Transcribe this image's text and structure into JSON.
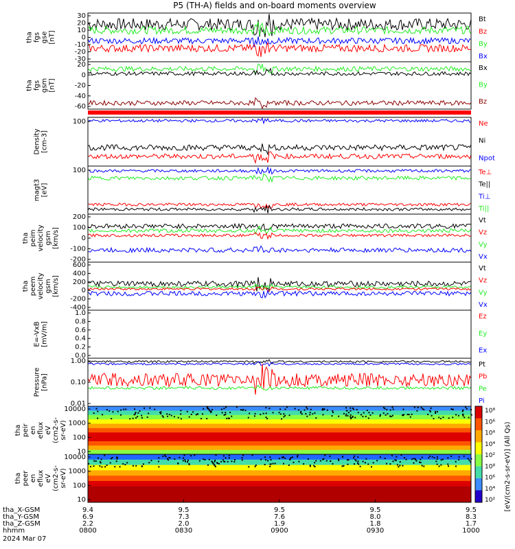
{
  "title": "P5 (TH-A) fields and on-board moments overview",
  "colors": {
    "black": "#000000",
    "red": "#ff0000",
    "green": "#22ee22",
    "blue": "#0000ff",
    "darkred": "#8b0000"
  },
  "panels": [
    {
      "id": "fgs",
      "ylabel": [
        "tha",
        "fgs",
        "gse",
        "[nT]"
      ],
      "ticks": [
        "30",
        "20",
        "10",
        "0",
        "-10",
        "-20",
        "-30"
      ],
      "ylim": [
        -30,
        35
      ],
      "legend": [
        {
          "label": "Bt",
          "color": "black"
        },
        {
          "label": "Bz",
          "color": "red"
        },
        {
          "label": "By",
          "color": "green"
        },
        {
          "label": "Bx",
          "color": "blue"
        }
      ],
      "series": [
        {
          "color": "black",
          "mean": 20,
          "amp": 8
        },
        {
          "color": "green",
          "mean": 12,
          "amp": 5
        },
        {
          "color": "blue",
          "mean": -2,
          "amp": 4
        },
        {
          "color": "red",
          "mean": -12,
          "amp": 5
        }
      ]
    },
    {
      "id": "fgs_gsm",
      "ylabel": [
        "tha",
        "fgs",
        "gsm",
        "[nT]"
      ],
      "ticks": [
        "20",
        "0",
        "-20",
        "-40",
        "-60"
      ],
      "ylim": [
        -75,
        25
      ],
      "legend": [
        {
          "label": "Bx",
          "color": "black"
        },
        {
          "label": "By",
          "color": "green"
        },
        {
          "label": "Bz",
          "color": "darkred"
        }
      ],
      "series": [
        {
          "color": "green",
          "mean": 10,
          "amp": 5
        },
        {
          "color": "black",
          "mean": 0,
          "amp": 4
        },
        {
          "color": "darkred",
          "mean": -62,
          "amp": 5
        }
      ]
    },
    {
      "id": "density",
      "ylabel": [
        "Density",
        "[cm-3]"
      ],
      "ticks": [
        "100"
      ],
      "ylim": [
        0,
        1
      ],
      "legend": [
        {
          "label": "Ne",
          "color": "red"
        },
        {
          "label": "Ni",
          "color": "black"
        },
        {
          "label": "Npot",
          "color": "blue"
        }
      ],
      "series": [
        {
          "color": "blue",
          "mean": 0.93,
          "amp": 0.03
        },
        {
          "color": "black",
          "mean": 0.38,
          "amp": 0.06
        },
        {
          "color": "red",
          "mean": 0.2,
          "amp": 0.05
        }
      ]
    },
    {
      "id": "temp",
      "ylabel": [
        "magt3",
        "[eV]"
      ],
      "ticks": [
        "100"
      ],
      "ylim": [
        0,
        1
      ],
      "legend": [
        {
          "label": "Te⊥",
          "color": "red"
        },
        {
          "label": "Te||",
          "color": "black"
        },
        {
          "label": "Ti⊥",
          "color": "blue"
        },
        {
          "label": "Ti||",
          "color": "green"
        }
      ],
      "series": [
        {
          "color": "blue",
          "mean": 0.9,
          "amp": 0.03
        },
        {
          "color": "green",
          "mean": 0.75,
          "amp": 0.04
        },
        {
          "color": "red",
          "mean": 0.2,
          "amp": 0.03
        },
        {
          "color": "black",
          "mean": 0.1,
          "amp": 0.03
        }
      ]
    },
    {
      "id": "peim",
      "ylabel": [
        "tha",
        "peim",
        "velocity",
        "gsm",
        "[km/s]"
      ],
      "ticks": [
        "200",
        "100",
        "0",
        "-100",
        "-200"
      ],
      "ylim": [
        -260,
        260
      ],
      "legend": [
        {
          "label": "Vt",
          "color": "black"
        },
        {
          "label": "Vz",
          "color": "red"
        },
        {
          "label": "Vy",
          "color": "green"
        },
        {
          "label": "Vx",
          "color": "blue"
        }
      ],
      "series": [
        {
          "color": "black",
          "mean": 130,
          "amp": 25
        },
        {
          "color": "green",
          "mean": 80,
          "amp": 20
        },
        {
          "color": "red",
          "mean": 30,
          "amp": 15
        },
        {
          "color": "blue",
          "mean": -130,
          "amp": 25
        }
      ]
    },
    {
      "id": "peem",
      "ylabel": [
        "tha",
        "peem",
        "velocity",
        "gsm",
        "[km/s]"
      ],
      "ticks": [
        "600",
        "400",
        "200",
        "0",
        "-200",
        "-400"
      ],
      "ylim": [
        -420,
        620
      ],
      "legend": [
        {
          "label": "Vt",
          "color": "black"
        },
        {
          "label": "Vz",
          "color": "red"
        },
        {
          "label": "Vy",
          "color": "green"
        },
        {
          "label": "Vx",
          "color": "blue"
        }
      ],
      "series": [
        {
          "color": "black",
          "mean": 150,
          "amp": 60
        },
        {
          "color": "green",
          "mean": 80,
          "amp": 30
        },
        {
          "color": "red",
          "mean": 40,
          "amp": 25
        },
        {
          "color": "blue",
          "mean": -60,
          "amp": 50
        }
      ]
    },
    {
      "id": "efield",
      "ylabel": [
        "E=-VxB",
        "[mV/m]"
      ],
      "ticks": [
        "1.0",
        "0.8",
        "0.6",
        "0.4",
        "0.2",
        "0.0"
      ],
      "ylim": [
        0,
        1
      ],
      "legend": [
        {
          "label": "Ez",
          "color": "red"
        },
        {
          "label": "Ey",
          "color": "green"
        },
        {
          "label": "Ex",
          "color": "blue"
        }
      ],
      "series": []
    },
    {
      "id": "pressure",
      "ylabel": [
        "Pressure",
        "[nPa]"
      ],
      "ticks": [
        "1.00",
        "0.10",
        "0.01"
      ],
      "ylim": [
        0,
        1
      ],
      "legend": [
        {
          "label": "Pt",
          "color": "black"
        },
        {
          "label": "Pb",
          "color": "red"
        },
        {
          "label": "Pe",
          "color": "green"
        },
        {
          "label": "Pi",
          "color": "blue"
        }
      ],
      "series": [
        {
          "color": "black",
          "mean": 0.93,
          "amp": 0.02
        },
        {
          "color": "blue",
          "mean": 0.88,
          "amp": 0.02
        },
        {
          "color": "red",
          "mean": 0.55,
          "amp": 0.14
        },
        {
          "color": "green",
          "mean": 0.38,
          "amp": 0.03
        }
      ]
    },
    {
      "id": "peir",
      "ylabel": [
        "tha",
        "peir",
        "en",
        "eflux",
        "eV",
        "(cm2-s-",
        "sr-eV)"
      ],
      "ticks": [
        "10000",
        "1000",
        "100",
        "10"
      ],
      "spectro": true
    },
    {
      "id": "peer",
      "ylabel": [
        "tha",
        "peer",
        "en",
        "eflux",
        "eV",
        "(cm2-s-",
        "sr-eV)"
      ],
      "ticks": [
        "10000",
        "1000",
        "100",
        "10"
      ],
      "spectro": true
    }
  ],
  "colorbar": {
    "ticks": [
      "10⁸",
      "10⁶",
      "10⁴",
      "10⁴",
      "10²",
      "10⁸",
      "10⁶",
      "10⁴",
      "10²"
    ],
    "label": "[eV/(cm2-s-sr-eV)]  (All Qs)"
  },
  "xaxis": {
    "ticks": [
      "0800",
      "0830",
      "0900",
      "0930",
      "1000"
    ],
    "rows": [
      {
        "label": "tha_X-GSM",
        "values": [
          "9.4",
          "9.5",
          "9.5",
          "9.5",
          "9.5"
        ]
      },
      {
        "label": "tha_Y-GSM",
        "values": [
          "6.9",
          "7.3",
          "7.6",
          "8.0",
          "8.3"
        ]
      },
      {
        "label": "tha_Z-GSM",
        "values": [
          "2.2",
          "2.0",
          "1.9",
          "1.8",
          "1.7"
        ]
      },
      {
        "label": "hhmm",
        "values": [
          "0800",
          "0830",
          "0900",
          "0930",
          "1000"
        ]
      }
    ],
    "date": "2024 Mar 07"
  }
}
